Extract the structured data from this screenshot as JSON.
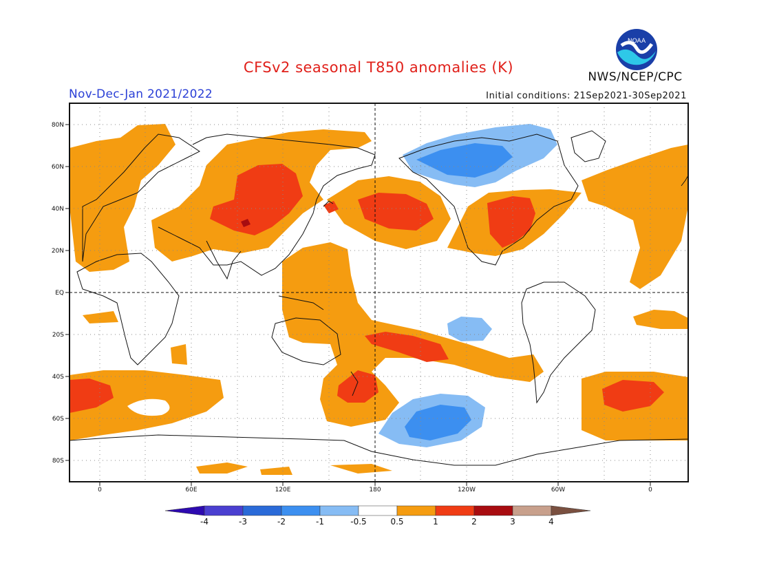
{
  "header": {
    "title": "CFSv2 seasonal T850 anomalies (K)",
    "org": "NWS/NCEP/CPC",
    "period": "Nov-Dec-Jan 2021/2022",
    "initial_conditions": "Initial conditions: 21Sep2021-30Sep2021",
    "logo_text": "NOAA"
  },
  "map": {
    "lat_labels": [
      "80N",
      "60N",
      "40N",
      "20N",
      "EQ",
      "20S",
      "40S",
      "60S",
      "80S"
    ],
    "lon_labels": [
      "0",
      "60E",
      "120E",
      "180",
      "120W",
      "60W",
      "0"
    ]
  },
  "colorbar": {
    "labels": [
      "-4",
      "-3",
      "-2",
      "-1",
      "-0.5",
      "0.5",
      "1",
      "2",
      "3",
      "4"
    ],
    "colors": [
      "#2d0ab0",
      "#4a3fd0",
      "#2a6ad8",
      "#3c8ff0",
      "#86bcf4",
      "#ffffff",
      "#f59c10",
      "#f03c14",
      "#a80c10",
      "#c8a08c",
      "#7a5040"
    ]
  }
}
